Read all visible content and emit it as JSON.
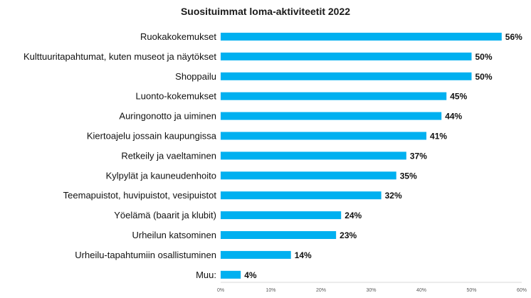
{
  "chart_data": {
    "type": "bar",
    "orientation": "horizontal",
    "title": "Suosituimmat loma-aktiviteetit 2022",
    "categories": [
      "Ruokakokemukset",
      "Kulttuuritapahtumat, kuten museot ja näytökset",
      "Shoppailu",
      "Luonto-kokemukset",
      "Auringonotto ja uiminen",
      "Kiertoajelu jossain kaupungissa",
      "Retkeily ja vaeltaminen",
      "Kylpylät ja kauneudenhoito",
      "Teemapuistot, huvipuistot, vesipuistot",
      "Yöelämä (baarit ja klubit)",
      "Urheilun katsominen",
      "Urheilu-tapahtumiin osallistuminen",
      "Muu:"
    ],
    "values": [
      56,
      50,
      50,
      45,
      44,
      41,
      37,
      35,
      32,
      24,
      23,
      14,
      4
    ],
    "value_labels": [
      "56%",
      "50%",
      "50%",
      "45%",
      "44%",
      "41%",
      "37%",
      "35%",
      "32%",
      "24%",
      "23%",
      "14%",
      "4%"
    ],
    "xlim": [
      0,
      60
    ],
    "x_ticks": [
      0,
      10,
      20,
      30,
      40,
      50,
      60
    ],
    "x_tick_labels": [
      "0%",
      "10%",
      "20%",
      "30%",
      "40%",
      "50%",
      "60%"
    ],
    "grid": false,
    "legend": "none",
    "bar_color": "#00B0F0"
  }
}
